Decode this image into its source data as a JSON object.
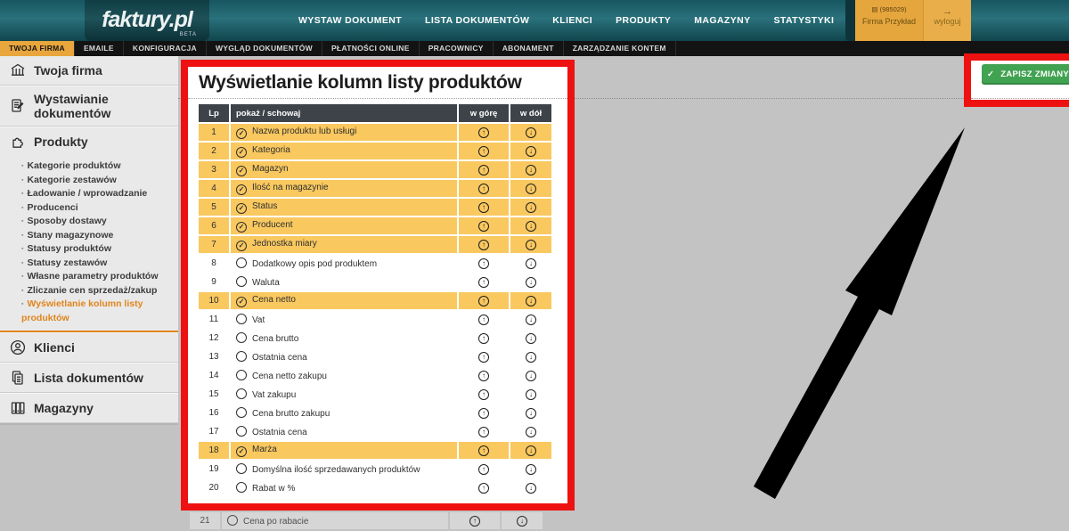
{
  "brand": {
    "logo": "faktury.pl",
    "beta": "BETA"
  },
  "topnav": {
    "items": [
      "WYSTAW DOKUMENT",
      "LISTA DOKUMENTÓW",
      "KLIENCI",
      "PRODUKTY",
      "MAGAZYNY",
      "STATYSTYKI",
      "USTAWIENIA"
    ],
    "active_index": 6,
    "account": {
      "id": "(985029)",
      "name": "Firma Przykład",
      "logout": "wyloguj"
    }
  },
  "subnav": {
    "items": [
      "TWOJA FIRMA",
      "EMAILE",
      "KONFIGURACJA",
      "WYGLĄD DOKUMENTÓW",
      "PŁATNOŚCI ONLINE",
      "PRACOWNICY",
      "ABONAMENT",
      "ZARZĄDZANIE KONTEM"
    ],
    "active_index": 0
  },
  "sidebar": {
    "items": [
      {
        "label": "Twoja firma",
        "icon": "bank-icon"
      },
      {
        "label": "Wystawianie dokumentów",
        "icon": "document-edit-icon"
      },
      {
        "label": "Produkty",
        "icon": "puzzle-icon",
        "expanded": true,
        "children": [
          {
            "label": "Kategorie produktów",
            "active": false
          },
          {
            "label": "Kategorie zestawów",
            "active": false
          },
          {
            "label": "Ładowanie / wprowadzanie",
            "active": false
          },
          {
            "label": "Producenci",
            "active": false
          },
          {
            "label": "Sposoby dostawy",
            "active": false
          },
          {
            "label": "Stany magazynowe",
            "active": false
          },
          {
            "label": "Statusy produktów",
            "active": false
          },
          {
            "label": "Statusy zestawów",
            "active": false
          },
          {
            "label": "Własne parametry produktów",
            "active": false
          },
          {
            "label": "Zliczanie cen sprzedaż/zakup",
            "active": false
          },
          {
            "label": "Wyświetlanie kolumn listy produktów",
            "active": true
          }
        ]
      },
      {
        "label": "Klienci",
        "icon": "person-icon"
      },
      {
        "label": "Lista dokumentów",
        "icon": "documents-icon"
      },
      {
        "label": "Magazyny",
        "icon": "archive-icon"
      }
    ]
  },
  "main": {
    "title": "Wyświetlanie kolumn listy produktów",
    "save_button": "ZAPISZ ZMIANY",
    "table": {
      "headers": [
        "Lp",
        "pokaż / schowaj",
        "w górę",
        "w dół"
      ],
      "rows": [
        {
          "lp": 1,
          "label": "Nazwa produktu lub usługi",
          "checked": true
        },
        {
          "lp": 2,
          "label": "Kategoria",
          "checked": true
        },
        {
          "lp": 3,
          "label": "Magazyn",
          "checked": true
        },
        {
          "lp": 4,
          "label": "Ilość na magazynie",
          "checked": true
        },
        {
          "lp": 5,
          "label": "Status",
          "checked": true
        },
        {
          "lp": 6,
          "label": "Producent",
          "checked": true
        },
        {
          "lp": 7,
          "label": "Jednostka miary",
          "checked": true
        },
        {
          "lp": 8,
          "label": "Dodatkowy opis pod produktem",
          "checked": false
        },
        {
          "lp": 9,
          "label": "Waluta",
          "checked": false
        },
        {
          "lp": 10,
          "label": "Cena netto",
          "checked": true
        },
        {
          "lp": 11,
          "label": "Vat",
          "checked": false
        },
        {
          "lp": 12,
          "label": "Cena brutto",
          "checked": false
        },
        {
          "lp": 13,
          "label": "Ostatnia cena",
          "checked": false
        },
        {
          "lp": 14,
          "label": "Cena netto zakupu",
          "checked": false
        },
        {
          "lp": 15,
          "label": "Vat zakupu",
          "checked": false
        },
        {
          "lp": 16,
          "label": "Cena brutto zakupu",
          "checked": false
        },
        {
          "lp": 17,
          "label": "Ostatnia cena",
          "checked": false
        },
        {
          "lp": 18,
          "label": "Marża",
          "checked": true
        },
        {
          "lp": 19,
          "label": "Domyślna ilość sprzedawanych produktów",
          "checked": false
        },
        {
          "lp": 20,
          "label": "Rabat w %",
          "checked": false
        },
        {
          "lp": 21,
          "label": "Cena po rabacie",
          "checked": false
        }
      ]
    }
  },
  "colors": {
    "annotation_red": "#ee1111",
    "row_yellow": "#f9c85f",
    "save_green": "#41a351",
    "navbar_teal": "#246a73",
    "subnav_yellow": "#e8a63c",
    "sidebar_active_orange": "#e0851c"
  }
}
